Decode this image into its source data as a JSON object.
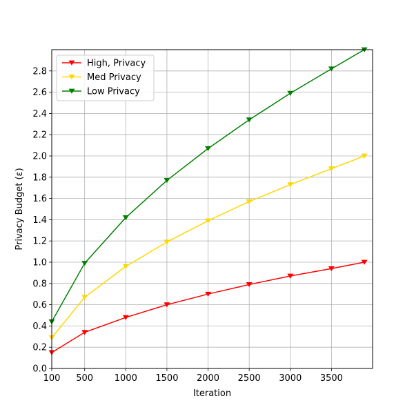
{
  "chart_data": {
    "type": "line",
    "title": "",
    "xlabel": "Iteration",
    "ylabel": "Privacy Budget (ε)",
    "x": [
      100,
      500,
      1000,
      1500,
      2000,
      2500,
      3000,
      3500,
      3900
    ],
    "xticks": [
      100,
      500,
      1000,
      1500,
      2000,
      2500,
      3000,
      3500
    ],
    "xtick_labels": [
      "100",
      "500",
      "1000",
      "1500",
      "2000",
      "2500",
      "3000",
      "3500"
    ],
    "xlim": [
      100,
      4000
    ],
    "ylim": [
      0,
      3.0
    ],
    "yticks": [
      0.0,
      0.2,
      0.4,
      0.6,
      0.8,
      1.0,
      1.2,
      1.4,
      1.6,
      1.8,
      2.0,
      2.2,
      2.4,
      2.6,
      2.8
    ],
    "ytick_labels": [
      "0.0",
      "0.2",
      "0.4",
      "0.6",
      "0.8",
      "1.0",
      "1.2",
      "1.4",
      "1.6",
      "1.8",
      "2.0",
      "2.2",
      "2.4",
      "2.6",
      "2.8"
    ],
    "grid": true,
    "legend_position": "top-left",
    "marker": "triangle-down",
    "series": [
      {
        "name": "High, Privacy",
        "color": "#ff0000",
        "values": [
          0.15,
          0.34,
          0.48,
          0.6,
          0.7,
          0.79,
          0.87,
          0.94,
          1.0
        ]
      },
      {
        "name": "Med Privacy",
        "color": "#ffd700",
        "values": [
          0.29,
          0.67,
          0.96,
          1.19,
          1.39,
          1.57,
          1.73,
          1.88,
          2.0
        ]
      },
      {
        "name": "Low Privacy",
        "color": "#008000",
        "values": [
          0.44,
          0.99,
          1.42,
          1.77,
          2.07,
          2.34,
          2.59,
          2.82,
          3.0
        ]
      }
    ]
  }
}
